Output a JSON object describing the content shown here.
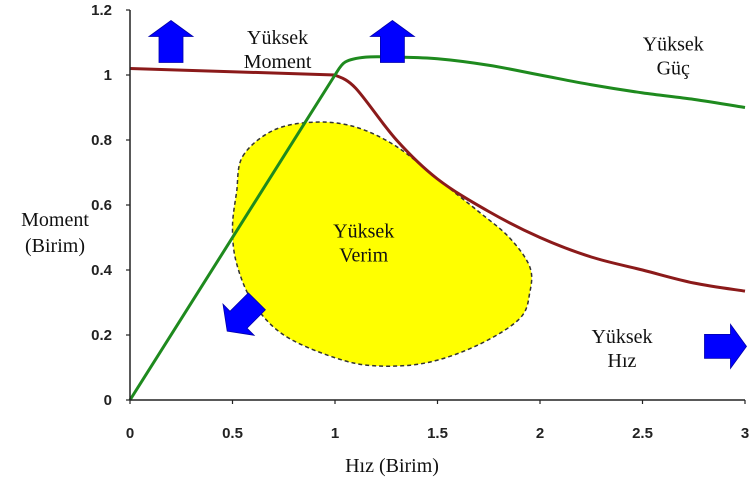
{
  "chart_data": {
    "type": "line",
    "xlabel": "Hız (Birim)",
    "ylabel_lines": [
      "Moment",
      "(Birim)"
    ],
    "xlim": [
      0,
      3
    ],
    "ylim": [
      0,
      1.2
    ],
    "x_ticks": [
      "0",
      "0.5",
      "1",
      "1.5",
      "2",
      "2.5",
      "3"
    ],
    "y_ticks": [
      "0",
      "0.2",
      "0.4",
      "0.6",
      "0.8",
      "1",
      "1.2"
    ],
    "grid": false,
    "series": [
      {
        "color": "#8b1a1a",
        "x": [
          0,
          0.5,
          1.0,
          1.1,
          1.3,
          1.5,
          1.75,
          2.0,
          2.25,
          2.5,
          2.75,
          3.0
        ],
        "y": [
          1.02,
          1.015,
          1.0,
          0.96,
          0.8,
          0.68,
          0.58,
          0.5,
          0.44,
          0.4,
          0.36,
          0.335
        ]
      },
      {
        "color": "#1e8a1e",
        "x": [
          0,
          0.5,
          1.0,
          1.05,
          1.15,
          1.3,
          1.5,
          1.75,
          2.0,
          2.25,
          2.5,
          2.75,
          3.0
        ],
        "y": [
          0,
          0.52,
          1.0,
          1.04,
          1.055,
          1.055,
          1.05,
          1.03,
          1.0,
          0.97,
          0.945,
          0.925,
          0.9
        ]
      }
    ],
    "efficiency_region": {
      "fill": "#ffff00",
      "outline": [
        [
          0.55,
          0.75
        ],
        [
          0.7,
          0.83
        ],
        [
          0.9,
          0.855
        ],
        [
          1.1,
          0.84
        ],
        [
          1.3,
          0.78
        ],
        [
          1.5,
          0.68
        ],
        [
          1.7,
          0.58
        ],
        [
          1.85,
          0.5
        ],
        [
          1.95,
          0.41
        ],
        [
          1.95,
          0.33
        ],
        [
          1.9,
          0.25
        ],
        [
          1.7,
          0.17
        ],
        [
          1.45,
          0.115
        ],
        [
          1.2,
          0.105
        ],
        [
          1.0,
          0.13
        ],
        [
          0.75,
          0.2
        ],
        [
          0.6,
          0.3
        ],
        [
          0.52,
          0.42
        ],
        [
          0.5,
          0.53
        ],
        [
          0.52,
          0.64
        ]
      ]
    },
    "arrow_color": "#0000ff",
    "annotations": [
      {
        "lines": [
          "Yüksek",
          "Moment"
        ],
        "x": 0.72,
        "y": 1.095,
        "arrow": "up",
        "arrow_x": 0.2,
        "arrow_y": 1.1
      },
      {
        "lines": [
          "Yüksek",
          "Güç"
        ],
        "x": 2.65,
        "y": 1.075,
        "arrow": "up",
        "arrow_x": 1.28,
        "arrow_y": 1.1
      },
      {
        "lines": [
          "Yüksek",
          "Verim"
        ],
        "x": 1.14,
        "y": 0.5,
        "arrow": "down-left",
        "arrow_x": 0.55,
        "arrow_y": 0.26
      },
      {
        "lines": [
          "Yüksek",
          "Hız"
        ],
        "x": 2.4,
        "y": 0.175,
        "arrow": "right",
        "arrow_x": 2.9,
        "arrow_y": 0.165
      }
    ]
  }
}
